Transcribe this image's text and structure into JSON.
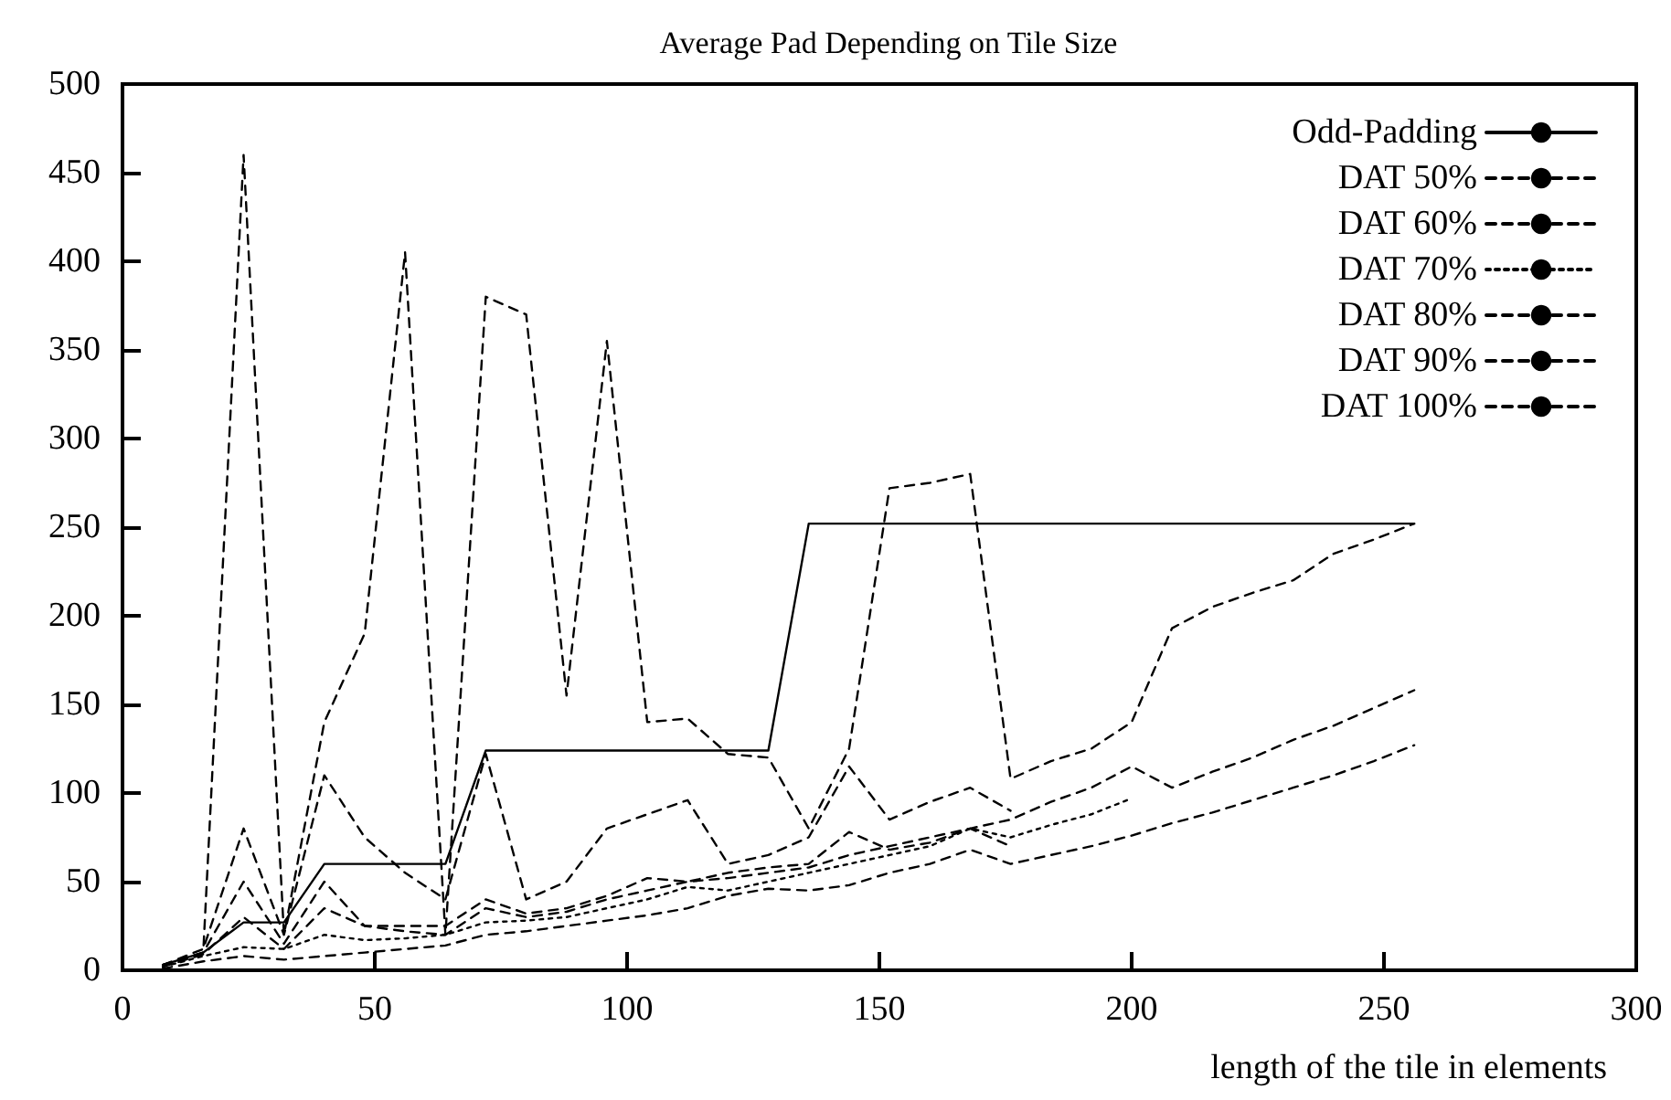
{
  "chart_data": {
    "type": "line",
    "title": "Average Pad Depending on Tile Size",
    "xlabel": "length of the tile in elements",
    "x": [
      8,
      16,
      24,
      32,
      40,
      48,
      56,
      64,
      72,
      80,
      88,
      96,
      104,
      112,
      120,
      128,
      136,
      144,
      152,
      160,
      168,
      176,
      184,
      192,
      200,
      208,
      216,
      224,
      232,
      240,
      248,
      256
    ],
    "series": [
      {
        "name": "Odd-Padding",
        "color": "#000000",
        "line_style": "solid",
        "values": [
          3,
          10,
          27,
          27,
          60,
          60,
          60,
          60,
          124,
          124,
          124,
          124,
          124,
          124,
          124,
          124,
          252,
          252,
          252,
          252,
          252,
          252,
          252,
          252,
          252,
          252,
          252,
          252,
          252,
          252,
          252,
          252
        ]
      },
      {
        "name": "DAT 50%",
        "color": "#000000",
        "line_style": "dashed",
        "values": [
          1,
          5,
          8,
          6,
          8,
          10,
          12,
          14,
          20,
          22,
          25,
          28,
          31,
          35,
          42,
          46,
          45,
          48,
          55,
          60,
          68,
          60,
          65,
          70,
          76,
          83,
          89,
          96,
          103,
          110,
          118,
          127
        ]
      },
      {
        "name": "DAT 60%",
        "color": "#000000",
        "line_style": "dashed",
        "values": [
          2,
          9,
          30,
          12,
          35,
          25,
          22,
          20,
          35,
          30,
          33,
          40,
          45,
          50,
          52,
          55,
          58,
          65,
          70,
          75,
          80,
          70,
          null,
          null,
          null,
          null,
          null,
          null,
          null,
          null,
          null,
          null
        ]
      },
      {
        "name": "DAT 70%",
        "color": "#000000",
        "line_style": "dotted",
        "values": [
          2,
          8,
          13,
          12,
          20,
          17,
          18,
          20,
          27,
          28,
          30,
          35,
          40,
          47,
          45,
          50,
          55,
          60,
          65,
          70,
          80,
          75,
          82,
          88,
          97,
          null,
          null,
          null,
          null,
          null,
          null,
          null
        ]
      },
      {
        "name": "DAT 80%",
        "color": "#000000",
        "line_style": "dashed",
        "values": [
          3,
          10,
          50,
          15,
          50,
          25,
          25,
          25,
          40,
          32,
          35,
          42,
          52,
          50,
          55,
          58,
          60,
          78,
          68,
          72,
          80,
          85,
          95,
          103,
          115,
          103,
          112,
          120,
          130,
          138,
          148,
          158
        ]
      },
      {
        "name": "DAT 90%",
        "color": "#000000",
        "line_style": "dashed",
        "values": [
          3,
          12,
          80,
          20,
          110,
          75,
          55,
          40,
          122,
          40,
          50,
          80,
          88,
          96,
          60,
          65,
          75,
          115,
          85,
          95,
          103,
          90,
          null,
          null,
          null,
          null,
          null,
          null,
          null,
          null,
          null,
          null
        ]
      },
      {
        "name": "DAT 100%",
        "color": "#000000",
        "line_style": "dashed",
        "values": [
          3,
          10,
          460,
          20,
          140,
          190,
          405,
          20,
          380,
          370,
          155,
          355,
          140,
          142,
          122,
          120,
          80,
          125,
          272,
          275,
          280,
          108,
          118,
          125,
          140,
          193,
          205,
          213,
          220,
          235,
          243,
          252
        ]
      }
    ],
    "xlim": [
      0,
      300
    ],
    "xticks": [
      0,
      50,
      100,
      150,
      200,
      250,
      300
    ],
    "ylim": [
      0,
      500
    ],
    "yticks": [
      0,
      50,
      100,
      150,
      200,
      250,
      300,
      350,
      400,
      450,
      500
    ],
    "grid": false,
    "legend": "top right",
    "marker": "none"
  }
}
